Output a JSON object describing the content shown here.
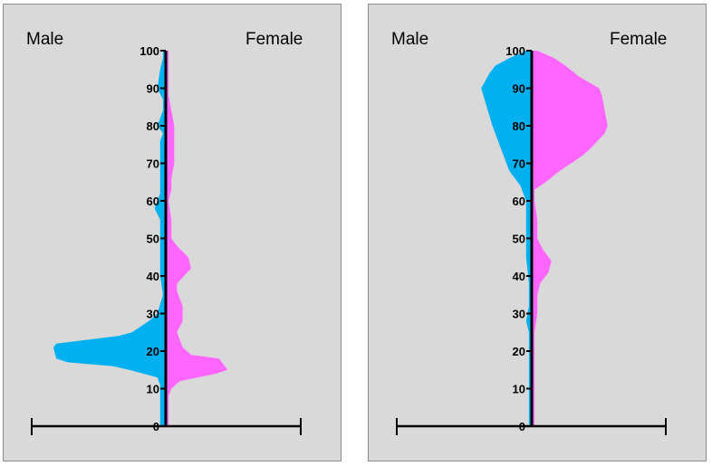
{
  "chart_data": [
    {
      "type": "area",
      "title": "",
      "left_label": "Male",
      "right_label": "Female",
      "ylim": [
        0,
        100
      ],
      "y_ticks": [
        "0",
        "10",
        "20",
        "30",
        "40",
        "50",
        "60",
        "70",
        "80",
        "90",
        "100"
      ],
      "colors": {
        "male": "#00b0f0",
        "female": "#ff66ff"
      },
      "series": [
        {
          "name": "Male",
          "points": [
            [
              0,
              2
            ],
            [
              2,
              2
            ],
            [
              5,
              2
            ],
            [
              8,
              2
            ],
            [
              11,
              2
            ],
            [
              13,
              3
            ],
            [
              15,
              13
            ],
            [
              16,
              19
            ],
            [
              17,
              35
            ],
            [
              18,
              39
            ],
            [
              21,
              40
            ],
            [
              22,
              39
            ],
            [
              24,
              17
            ],
            [
              25,
              12
            ],
            [
              28,
              6
            ],
            [
              30,
              3
            ],
            [
              35,
              1
            ],
            [
              40,
              2
            ],
            [
              45,
              2
            ],
            [
              50,
              2
            ],
            [
              55,
              2
            ],
            [
              58,
              4
            ],
            [
              62,
              2
            ],
            [
              65,
              2
            ],
            [
              70,
              2
            ],
            [
              74,
              2
            ],
            [
              76,
              2
            ],
            [
              78,
              1
            ],
            [
              80,
              3
            ],
            [
              84,
              1
            ],
            [
              87,
              1
            ],
            [
              90,
              3
            ],
            [
              95,
              2
            ],
            [
              98,
              1
            ],
            [
              100,
              1
            ]
          ]
        },
        {
          "name": "Female",
          "points": [
            [
              0,
              1
            ],
            [
              2,
              1
            ],
            [
              5,
              1
            ],
            [
              8,
              1
            ],
            [
              10,
              2
            ],
            [
              12,
              5
            ],
            [
              14,
              18
            ],
            [
              15,
              22
            ],
            [
              16,
              21
            ],
            [
              18,
              19
            ],
            [
              19,
              9
            ],
            [
              21,
              6
            ],
            [
              25,
              4
            ],
            [
              28,
              6
            ],
            [
              32,
              6
            ],
            [
              36,
              4
            ],
            [
              38,
              4
            ],
            [
              42,
              9
            ],
            [
              45,
              8
            ],
            [
              48,
              4
            ],
            [
              50,
              2
            ],
            [
              55,
              2
            ],
            [
              60,
              1
            ],
            [
              63,
              2
            ],
            [
              66,
              2
            ],
            [
              70,
              3
            ],
            [
              73,
              3
            ],
            [
              76,
              3
            ],
            [
              80,
              3
            ],
            [
              84,
              2
            ],
            [
              88,
              1
            ],
            [
              92,
              1
            ],
            [
              96,
              1
            ],
            [
              100,
              1
            ]
          ]
        }
      ]
    },
    {
      "type": "area",
      "title": "",
      "left_label": "Male",
      "right_label": "Female",
      "ylim": [
        0,
        100
      ],
      "y_ticks": [
        "0",
        "10",
        "20",
        "30",
        "40",
        "50",
        "60",
        "70",
        "80",
        "90",
        "100"
      ],
      "colors": {
        "male": "#00b0f0",
        "female": "#ff66ff"
      },
      "series": [
        {
          "name": "Male",
          "points": [
            [
              0,
              1
            ],
            [
              3,
              1
            ],
            [
              7,
              1
            ],
            [
              10,
              1
            ],
            [
              15,
              1
            ],
            [
              20,
              1
            ],
            [
              25,
              1
            ],
            [
              28,
              2
            ],
            [
              32,
              1
            ],
            [
              38,
              1
            ],
            [
              45,
              2
            ],
            [
              52,
              2
            ],
            [
              56,
              2
            ],
            [
              60,
              2
            ],
            [
              62,
              3
            ],
            [
              64,
              4
            ],
            [
              66,
              6
            ],
            [
              68,
              8
            ],
            [
              72,
              10
            ],
            [
              76,
              12
            ],
            [
              80,
              14
            ],
            [
              85,
              16
            ],
            [
              90,
              18
            ],
            [
              94,
              15
            ],
            [
              96,
              13
            ],
            [
              98,
              8
            ],
            [
              100,
              2
            ]
          ]
        },
        {
          "name": "Female",
          "points": [
            [
              0,
              1
            ],
            [
              2,
              1
            ],
            [
              5,
              1
            ],
            [
              10,
              1
            ],
            [
              15,
              1
            ],
            [
              20,
              1
            ],
            [
              25,
              1
            ],
            [
              30,
              2
            ],
            [
              35,
              2
            ],
            [
              38,
              3
            ],
            [
              41,
              6
            ],
            [
              44,
              7
            ],
            [
              47,
              4
            ],
            [
              50,
              2
            ],
            [
              55,
              2
            ],
            [
              60,
              1
            ],
            [
              62,
              1
            ],
            [
              63,
              1
            ],
            [
              65,
              5
            ],
            [
              68,
              10
            ],
            [
              70,
              14
            ],
            [
              72,
              18
            ],
            [
              74,
              21
            ],
            [
              78,
              26
            ],
            [
              80,
              27
            ],
            [
              84,
              26
            ],
            [
              88,
              25
            ],
            [
              90,
              24
            ],
            [
              93,
              17
            ],
            [
              96,
              12
            ],
            [
              98,
              8
            ],
            [
              100,
              2
            ]
          ]
        }
      ]
    }
  ]
}
